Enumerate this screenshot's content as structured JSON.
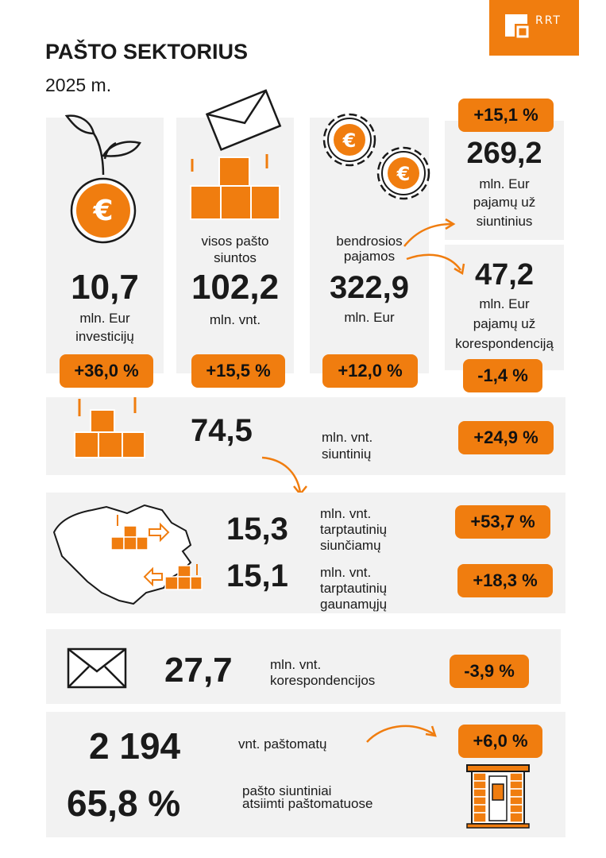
{
  "header": {
    "title": "PAŠTO SEKTORIUS",
    "year": "2025 m.",
    "logo_text": "RRT"
  },
  "colors": {
    "accent": "#f07d0f",
    "panel": "#f2f2f2",
    "text": "#1a1a1a"
  },
  "top": {
    "investments": {
      "value": "10,7",
      "label1": "mln. Eur",
      "label2": "investicijų",
      "change": "+36,0 %",
      "icon": "sprout-euro-icon"
    },
    "all_items": {
      "caption1": "visos pašto",
      "caption2": "siuntos",
      "value": "102,2",
      "label": "mln. vnt.",
      "change": "+15,5 %",
      "icon": "envelope-boxes-icon"
    },
    "revenue": {
      "caption1": "bendrosios",
      "caption2": "pajamos",
      "value": "322,9",
      "label": "mln. Eur",
      "change": "+12,0 %",
      "icon": "euro-gears-icon"
    },
    "parcel_revenue": {
      "change": "+15,1 %",
      "value": "269,2",
      "label1": "mln. Eur",
      "label2": "pajamų už",
      "label3": "siuntinius"
    },
    "correspondence_revenue": {
      "value": "47,2",
      "label1": "mln. Eur",
      "label2": "pajamų už",
      "label3": "korespondenciją",
      "change": "-1,4 %"
    }
  },
  "parcels": {
    "value": "74,5",
    "label1": "mln. vnt.",
    "label2": "siuntinių",
    "change": "+24,9 %",
    "icon": "boxes-icon"
  },
  "international": {
    "sent": {
      "value": "15,3",
      "label1": "mln. vnt.",
      "label2": "tarptautinių",
      "label3": "siunčiamų",
      "change": "+53,7 %"
    },
    "received": {
      "value": "15,1",
      "label1": "mln. vnt.",
      "label2": "tarptautinių",
      "label3": "gaunamųjų",
      "change": "+18,3 %"
    },
    "icon": "lithuania-map-icon"
  },
  "correspondence": {
    "value": "27,7",
    "label1": "mln. vnt.",
    "label2": "korespondencijos",
    "change": "-3,9 %",
    "icon": "envelope-icon"
  },
  "parcel_lockers": {
    "value": "2 194",
    "label": "vnt. paštomatų",
    "change": "+6,0 %",
    "share_value": "65,8 %",
    "share_label1": "pašto siuntiniai",
    "share_label2": "atsiimti paštomatuose",
    "icon": "parcel-locker-icon"
  }
}
